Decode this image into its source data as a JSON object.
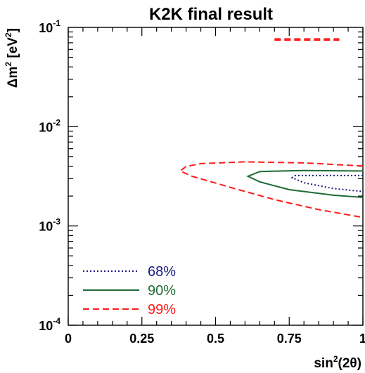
{
  "chart_data": {
    "type": "contour",
    "title": "K2K final result",
    "xlabel": "sin²(2θ)",
    "xlabel_parts": {
      "prefix": "sin",
      "exp": "2",
      "suffix": "(2θ)"
    },
    "ylabel": "Δm² [eV²]",
    "ylabel_parts": {
      "prefix": "Δm",
      "exp": "2",
      "mid": " [eV",
      "exp2": "2",
      "suffix": "]"
    },
    "xlim": [
      0,
      1.0
    ],
    "ylim": [
      0.0001,
      0.1
    ],
    "yscale": "log",
    "grid": false,
    "legend_position": "bottom-left",
    "x_ticks": [
      {
        "value": 0,
        "label": "0"
      },
      {
        "value": 0.25,
        "label": "0.25"
      },
      {
        "value": 0.5,
        "label": "0.5"
      },
      {
        "value": 0.75,
        "label": "0.75"
      },
      {
        "value": 1.0,
        "label": "1"
      }
    ],
    "y_ticks": [
      {
        "value": 0.0001,
        "base": "10",
        "exp": "-4"
      },
      {
        "value": 0.001,
        "base": "10",
        "exp": "-3"
      },
      {
        "value": 0.01,
        "base": "10",
        "exp": "-2"
      },
      {
        "value": 0.1,
        "base": "10",
        "exp": "-1"
      }
    ],
    "series": [
      {
        "name": "68%",
        "color": "#1a1a80",
        "style": "dotted",
        "regions": [
          {
            "closed": false,
            "points": [
              [
                1.0,
                0.00322
              ],
              [
                0.77,
                0.00322
              ],
              [
                0.76,
                0.00306
              ],
              [
                0.8,
                0.00272
              ],
              [
                0.9,
                0.00238
              ],
              [
                1.0,
                0.00222
              ]
            ]
          }
        ]
      },
      {
        "name": "90%",
        "color": "#1e6b35",
        "style": "solid",
        "regions": [
          {
            "closed": false,
            "points": [
              [
                1.0,
                0.00358
              ],
              [
                0.8,
                0.00362
              ],
              [
                0.65,
                0.00353
              ],
              [
                0.61,
                0.00317
              ],
              [
                0.65,
                0.00278
              ],
              [
                0.75,
                0.00232
              ],
              [
                0.9,
                0.00204
              ],
              [
                1.0,
                0.00194
              ]
            ]
          }
        ]
      },
      {
        "name": "99%",
        "color": "#ff1a1a",
        "style": "dashed",
        "regions": [
          {
            "closed": false,
            "points": [
              [
                1.0,
                0.00402
              ],
              [
                0.8,
                0.00432
              ],
              [
                0.6,
                0.00442
              ],
              [
                0.45,
                0.00425
              ],
              [
                0.4,
                0.00397
              ],
              [
                0.38,
                0.00358
              ],
              [
                0.42,
                0.00317
              ],
              [
                0.55,
                0.00245
              ],
              [
                0.7,
                0.00184
              ],
              [
                0.85,
                0.00146
              ],
              [
                1.0,
                0.00122
              ]
            ]
          },
          {
            "closed": false,
            "points": [
              [
                0.7,
                0.0745
              ],
              [
                0.92,
                0.0745
              ]
            ]
          },
          {
            "closed": false,
            "points": [
              [
                0.7,
                0.0765
              ],
              [
                0.92,
                0.0765
              ]
            ]
          }
        ]
      }
    ]
  }
}
